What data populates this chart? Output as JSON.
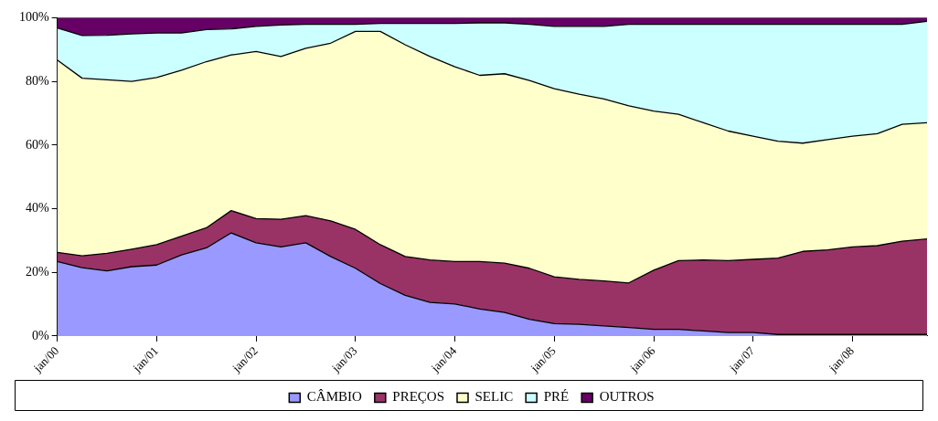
{
  "chart_data": {
    "type": "area",
    "stacked": true,
    "legend": "bottom",
    "grid": false,
    "line_style": "solid",
    "marker": "none",
    "x": [
      "2000-01",
      "2000-04",
      "2000-07",
      "2000-10",
      "2001-01",
      "2001-04",
      "2001-07",
      "2001-10",
      "2002-01",
      "2002-04",
      "2002-07",
      "2002-10",
      "2003-01",
      "2003-04",
      "2003-07",
      "2003-10",
      "2004-01",
      "2004-04",
      "2004-07",
      "2004-10",
      "2005-01",
      "2005-04",
      "2005-07",
      "2005-10",
      "2006-01",
      "2006-04",
      "2006-07",
      "2006-10",
      "2007-01",
      "2007-04",
      "2007-07",
      "2007-10",
      "2008-01",
      "2008-04",
      "2008-07",
      "2008-10"
    ],
    "xlim": [
      "2000-01",
      "2008-10"
    ],
    "xticks": [
      {
        "value": "2000-01",
        "label": "jan/00"
      },
      {
        "value": "2001-01",
        "label": "jan/01"
      },
      {
        "value": "2002-01",
        "label": "jan/02"
      },
      {
        "value": "2003-01",
        "label": "jan/03"
      },
      {
        "value": "2004-01",
        "label": "jan/04"
      },
      {
        "value": "2005-01",
        "label": "jan/05"
      },
      {
        "value": "2006-01",
        "label": "jan/06"
      },
      {
        "value": "2007-01",
        "label": "jan/07"
      },
      {
        "value": "2008-01",
        "label": "jan/08"
      }
    ],
    "ylim": [
      0,
      100
    ],
    "yticks": [
      {
        "value": 0,
        "label": "0%"
      },
      {
        "value": 20,
        "label": "20%"
      },
      {
        "value": 40,
        "label": "40%"
      },
      {
        "value": 60,
        "label": "60%"
      },
      {
        "value": 80,
        "label": "80%"
      },
      {
        "value": 100,
        "label": "100%"
      }
    ],
    "series": [
      {
        "name": "CÂMBIO",
        "color": "#9999ff",
        "values": [
          23.4,
          21.5,
          20.5,
          21.8,
          22.3,
          25.5,
          27.7,
          32.4,
          29.3,
          28.0,
          29.3,
          25.0,
          21.3,
          16.5,
          12.8,
          10.6,
          10.1,
          8.5,
          7.4,
          5.3,
          3.9,
          3.7,
          3.2,
          2.7,
          2.1,
          2.1,
          1.6,
          1.1,
          1.1,
          0.5,
          0.5,
          0.5,
          0.5,
          0.5,
          0.5,
          0.5
        ]
      },
      {
        "name": "PREÇOS",
        "color": "#993366",
        "values": [
          2.9,
          3.7,
          5.5,
          5.5,
          6.4,
          5.9,
          6.3,
          7.0,
          7.6,
          8.7,
          8.5,
          11.2,
          12.2,
          12.2,
          12.2,
          13.3,
          13.3,
          14.9,
          15.5,
          16.0,
          14.7,
          14.1,
          14.1,
          14.0,
          18.6,
          21.6,
          22.3,
          22.6,
          23.0,
          24.0,
          26.1,
          26.6,
          27.5,
          27.9,
          29.3,
          30.0
        ]
      },
      {
        "name": "SELIC",
        "color": "#ffffcc",
        "values": [
          60.4,
          55.8,
          54.5,
          52.7,
          52.5,
          52.1,
          52.2,
          48.9,
          52.5,
          51.1,
          52.6,
          55.8,
          62.2,
          67.0,
          66.5,
          63.9,
          61.2,
          58.5,
          59.5,
          59.0,
          59.1,
          58.2,
          57.2,
          55.6,
          50.0,
          46.0,
          43.1,
          40.7,
          38.7,
          36.7,
          34.0,
          34.6,
          34.8,
          35.2,
          36.7,
          36.5
        ]
      },
      {
        "name": "PRÉ",
        "color": "#ccffff",
        "values": [
          10.1,
          13.4,
          14.0,
          14.9,
          14.0,
          11.7,
          10.1,
          8.2,
          7.9,
          9.9,
          7.5,
          5.9,
          2.2,
          2.5,
          6.7,
          10.4,
          13.6,
          16.5,
          16.0,
          17.6,
          19.6,
          21.3,
          22.8,
          25.6,
          27.2,
          28.2,
          30.9,
          33.5,
          35.1,
          36.7,
          37.3,
          36.2,
          35.1,
          34.3,
          31.4,
          31.9
        ]
      },
      {
        "name": "OUTROS",
        "color": "#660066",
        "values": [
          3.2,
          5.6,
          5.5,
          5.1,
          4.8,
          4.8,
          3.7,
          3.5,
          2.7,
          2.3,
          2.1,
          2.1,
          2.1,
          1.8,
          1.8,
          1.8,
          1.8,
          1.6,
          1.6,
          2.1,
          2.7,
          2.7,
          2.7,
          2.1,
          2.1,
          2.1,
          2.1,
          2.1,
          2.1,
          2.1,
          2.1,
          2.1,
          2.1,
          2.1,
          2.1,
          1.1
        ]
      }
    ]
  }
}
